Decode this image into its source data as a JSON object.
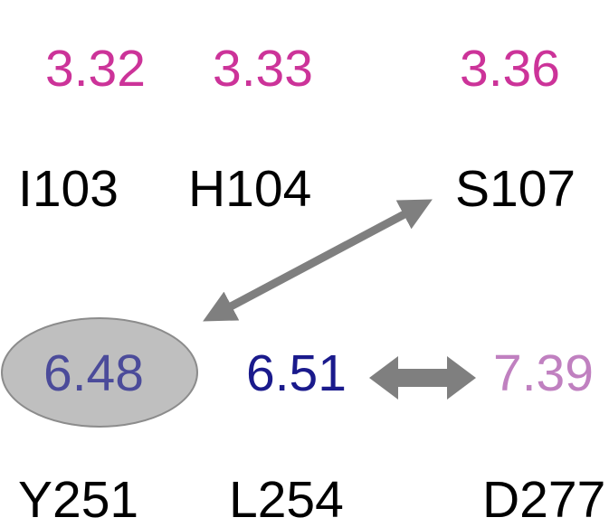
{
  "top_values": [
    "3.32",
    "3.33",
    "3.36"
  ],
  "top_residues": [
    "I103",
    "H104",
    "S107"
  ],
  "bottom_values": [
    "6.48",
    "6.51",
    "7.39"
  ],
  "bottom_residues": [
    "Y251",
    "L254",
    "D277"
  ]
}
